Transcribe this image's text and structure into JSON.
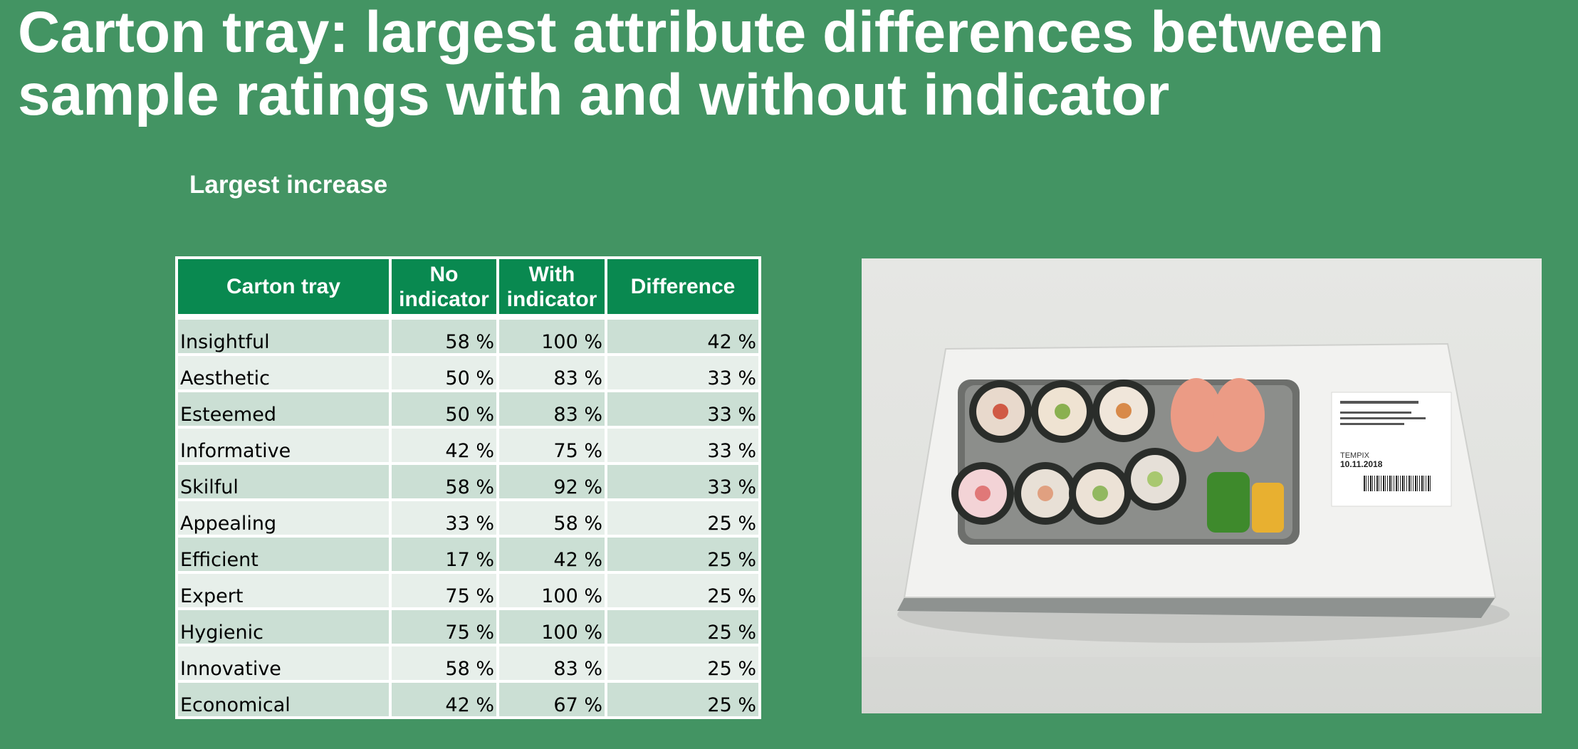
{
  "title": "Carton tray: largest attribute differences between sample ratings with and without indicator",
  "subtitle": "Largest increase",
  "table": {
    "headers": [
      "Carton tray",
      "No indicator",
      "With indicator",
      "Difference"
    ],
    "rows": [
      [
        "Insightful",
        "58 %",
        "100 %",
        "42 %"
      ],
      [
        "Aesthetic",
        "50 %",
        "83 %",
        "33 %"
      ],
      [
        "Esteemed",
        "50 %",
        "83 %",
        "33 %"
      ],
      [
        "Informative",
        "42 %",
        "75 %",
        "33 %"
      ],
      [
        "Skilful",
        "58 %",
        "92 %",
        "33 %"
      ],
      [
        "Appealing",
        "33 %",
        "58 %",
        "25 %"
      ],
      [
        "Efficient",
        "17 %",
        "42 %",
        "25 %"
      ],
      [
        "Expert",
        "75 %",
        "100 %",
        "25 %"
      ],
      [
        "Hygienic",
        "75 %",
        "100 %",
        "25 %"
      ],
      [
        "Innovative",
        "58 %",
        "83 %",
        "25 %"
      ],
      [
        "Economical",
        "42 %",
        "67 %",
        "25 %"
      ]
    ]
  },
  "photo": {
    "subject": "sushi-carton-tray-with-label",
    "label_lines": [
      "10.11.2018",
      "TEMPIX"
    ]
  },
  "colors": {
    "background": "#439463",
    "header": "#098950",
    "row_odd": "#cbdfd4",
    "row_even": "#e7efea"
  }
}
